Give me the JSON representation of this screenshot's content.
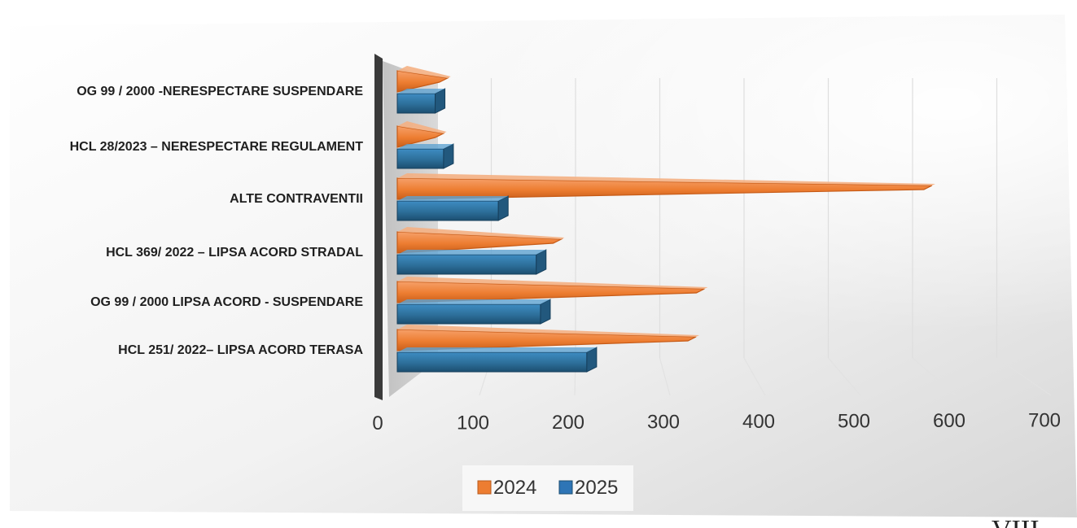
{
  "chart_data": {
    "type": "bar",
    "orientation": "horizontal",
    "categories": [
      "OG 99 / 2000 -NERESPECTARE  SUSPENDARE",
      "HCL 28/2023 – NERESPECTARE REGULAMENT",
      "ALTE CONTRAVENTII",
      "HCL 369/ 2022 – LIPSA ACORD STRADAL",
      "OG 99 / 2000 LIPSA ACORD - SUSPENDARE",
      "HCL 251/ 2022– LIPSA ACORD TERASA"
    ],
    "series": [
      {
        "name": "2024",
        "color": "#ED7D31",
        "values": [
          50,
          45,
          625,
          185,
          355,
          345
        ]
      },
      {
        "name": "2025",
        "color": "#2E75B6",
        "values": [
          45,
          55,
          120,
          165,
          170,
          225
        ]
      }
    ],
    "x_ticks": [
      "0",
      "100",
      "200",
      "300",
      "400",
      "500",
      "600",
      "700"
    ],
    "xlim": [
      0,
      700
    ],
    "grid": true,
    "legend": "bottom",
    "title": "",
    "xlabel": "",
    "ylabel": ""
  },
  "corner_text": "VIII"
}
